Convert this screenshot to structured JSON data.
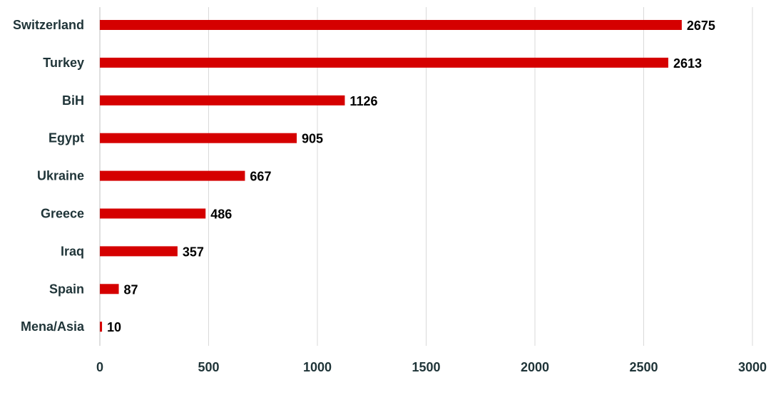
{
  "chart_data": {
    "type": "bar",
    "orientation": "horizontal",
    "categories": [
      "Switzerland",
      "Turkey",
      "BiH",
      "Egypt",
      "Ukraine",
      "Greece",
      "Iraq",
      "Spain",
      "Mena/Asia"
    ],
    "values": [
      2675,
      2613,
      1126,
      905,
      667,
      486,
      357,
      87,
      10
    ],
    "x_ticks": [
      "0",
      "500",
      "1000",
      "1500",
      "2000",
      "2500",
      "3000"
    ],
    "xlim": [
      0,
      3000
    ],
    "grid": "vertical",
    "legend": "none",
    "data_labels": true
  },
  "colors": {
    "bar": "#d50000",
    "label_text": "#1f3438",
    "value_text": "#000000",
    "grid": "#d9d9d9",
    "axis_line": "#bfbfbf"
  }
}
